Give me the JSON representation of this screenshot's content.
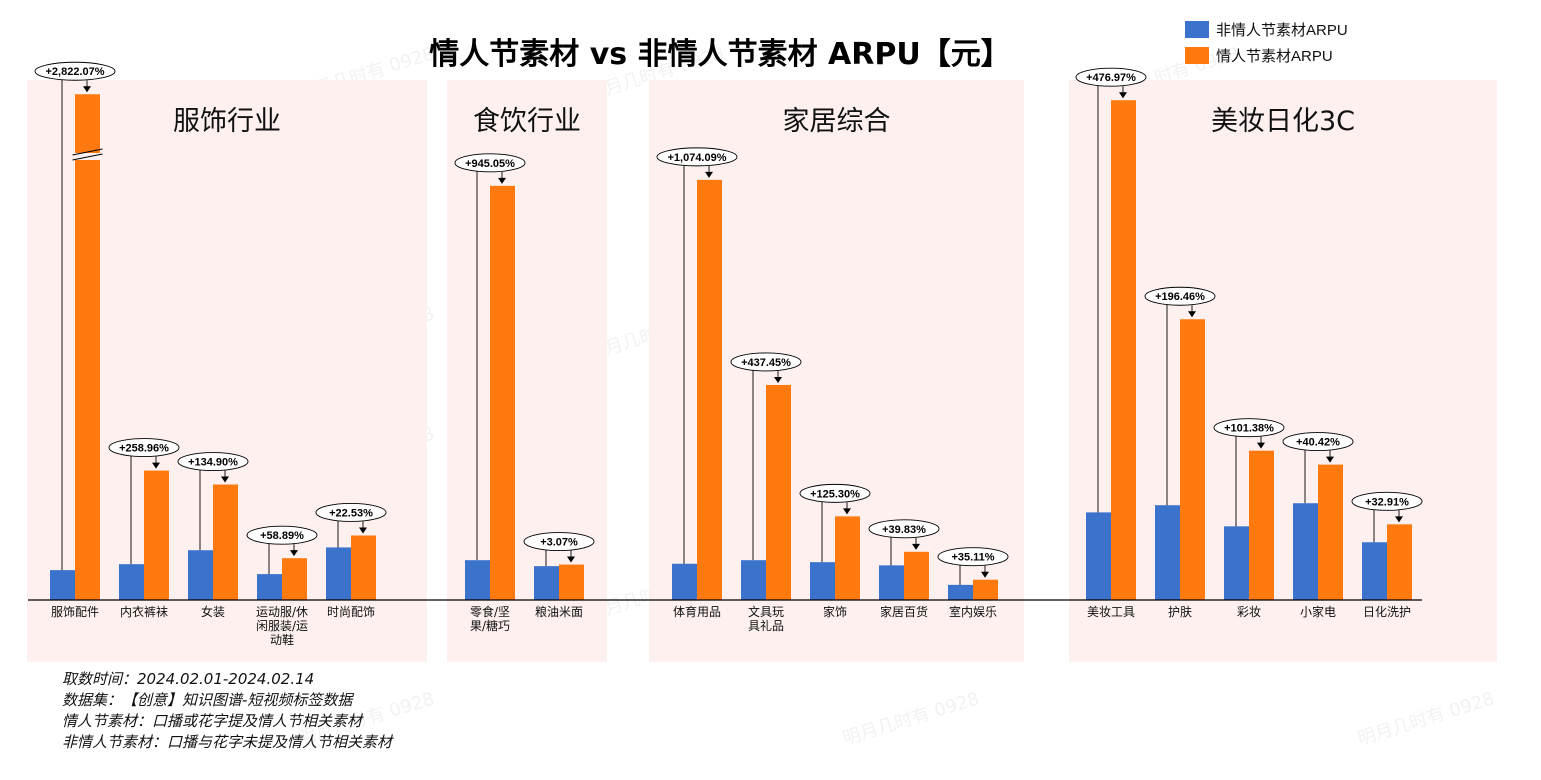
{
  "chart_data": {
    "type": "bar",
    "title": "情人节素材 vs 非情人节素材 ARPU【元】",
    "legend": {
      "position": "top-right",
      "entries": [
        {
          "label": "非情人节素材ARPU",
          "color": "#3A72CC"
        },
        {
          "label": "情人节素材ARPU",
          "color": "#FF7A0E"
        }
      ]
    },
    "ylim": [
      0,
      120
    ],
    "y_axis_shown": false,
    "grid": false,
    "panel_color": "#FDF0EE",
    "axis_break": {
      "category": "服饰配件",
      "series": "情人节素材ARPU"
    },
    "panels": [
      {
        "title": "服饰行业",
        "categories": [
          "服饰配件",
          "内衣裤袜",
          "女装",
          "运动服/休闲服装/运动鞋",
          "时尚配饰"
        ],
        "series": [
          {
            "name": "非情人节素材ARPU",
            "values": [
              7.5,
              9,
              12.5,
              6.5,
              13.2
            ]
          },
          {
            "name": "情人节素材ARPU",
            "values": [
              127,
              32.5,
              29,
              10.5,
              16.2
            ]
          }
        ],
        "pct_labels": [
          "+2,822.07%",
          "+258.96%",
          "+134.90%",
          "+58.89%",
          "+22.53%"
        ]
      },
      {
        "title": "食饮行业",
        "categories": [
          "零食/坚果/糖巧",
          "粮油米面"
        ],
        "series": [
          {
            "name": "非情人节素材ARPU",
            "values": [
              10,
              8.5
            ]
          },
          {
            "name": "情人节素材ARPU",
            "values": [
              104,
              8.9
            ]
          }
        ],
        "pct_labels": [
          "+945.05%",
          "+3.07%"
        ]
      },
      {
        "title": "家居综合",
        "categories": [
          "体育用品",
          "文具玩具礼品",
          "家饰",
          "家居百货",
          "室内娱乐"
        ],
        "series": [
          {
            "name": "非情人节素材ARPU",
            "values": [
              9.1,
              10,
              9.5,
              8.7,
              3.8
            ]
          },
          {
            "name": "情人节素材ARPU",
            "values": [
              105.5,
              54,
              21,
              12.1,
              5.1
            ]
          }
        ],
        "pct_labels": [
          "+1,074.09%",
          "+437.45%",
          "+125.30%",
          "+39.83%",
          "+35.11%"
        ]
      },
      {
        "title": "美妆日化3C",
        "categories": [
          "美妆工具",
          "护肤",
          "彩妆",
          "小家电",
          "日化洗护"
        ],
        "series": [
          {
            "name": "非情人节素材ARPU",
            "values": [
              22,
              23.8,
              18.5,
              24.3,
              14.5
            ]
          },
          {
            "name": "情人节素材ARPU",
            "values": [
              125.5,
              70.5,
              37.5,
              34,
              19
            ]
          }
        ],
        "pct_labels": [
          "+476.97%",
          "+196.46%",
          "+101.38%",
          "+40.42%",
          "+32.91%"
        ]
      }
    ]
  },
  "notes": [
    "取数时间：2024.02.01-2024.02.14",
    "数据集：【创意】知识图谱-短视频标签数据",
    "情人节素材：口播或花字提及情人节相关素材",
    "非情人节素材：口播与花字未提及情人节相关素材"
  ],
  "watermark": "明月几时有 0928"
}
